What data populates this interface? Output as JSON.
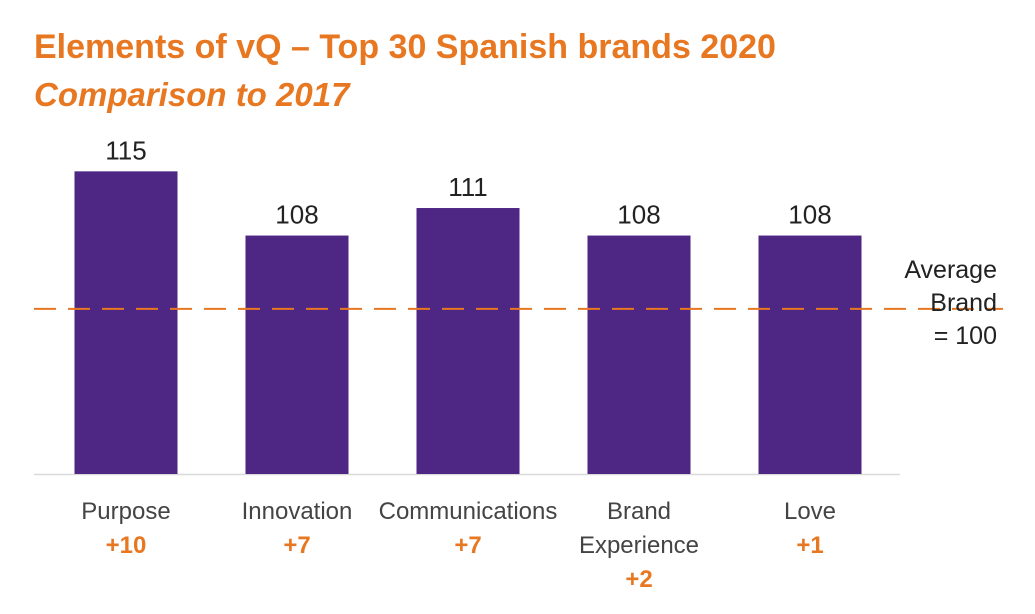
{
  "header": {
    "title": "Elements of vQ – Top 30 Spanish brands 2020",
    "subtitle": "Comparison to 2017"
  },
  "colors": {
    "bar": "#4E2683",
    "accent": "#E87722",
    "baseline": "#d9d9d9"
  },
  "chart_data": {
    "type": "bar",
    "title": "Elements of vQ – Top 30 Spanish brands 2020",
    "subtitle": "Comparison to 2017",
    "categories": [
      {
        "lines": [
          "Purpose"
        ],
        "change": "+10"
      },
      {
        "lines": [
          "Innovation"
        ],
        "change": "+7"
      },
      {
        "lines": [
          "Communications"
        ],
        "change": "+7"
      },
      {
        "lines": [
          "Brand",
          "Experience"
        ],
        "change": "+2"
      },
      {
        "lines": [
          "Love"
        ],
        "change": "+1"
      }
    ],
    "values": [
      115,
      108,
      111,
      108,
      108
    ],
    "reference_line": {
      "value": 100,
      "label_lines": [
        "Average",
        "Brand",
        "= 100"
      ],
      "style": "dashed"
    },
    "ylim": [
      82,
      117
    ],
    "xlabel": "",
    "ylabel": "",
    "grid": false,
    "legend": "none"
  }
}
